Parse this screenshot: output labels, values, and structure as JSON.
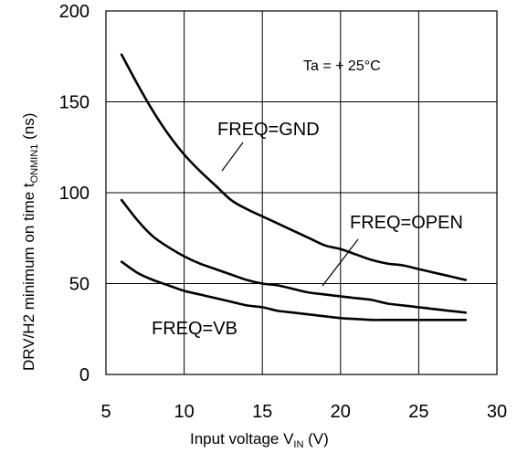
{
  "chart_data": {
    "type": "line",
    "title": "",
    "xlabel": {
      "main": "Input voltage V",
      "sub": "IN",
      "unit": " (V)"
    },
    "ylabel": {
      "main": "DRV/H2 minimum on time t",
      "sub": "ONMIN1",
      "unit": " (ns)"
    },
    "xlim": [
      5,
      30
    ],
    "ylim": [
      0,
      200
    ],
    "xticks": [
      5,
      10,
      15,
      20,
      25,
      30
    ],
    "yticks": [
      0,
      50,
      100,
      150,
      200
    ],
    "grid": true,
    "condition": "Ta = + 25°C",
    "series": [
      {
        "name": "FREQ=GND",
        "x": [
          6,
          7,
          8,
          9,
          10,
          11,
          12,
          13,
          14,
          15,
          16,
          17,
          18,
          19,
          20,
          21,
          22,
          23,
          24,
          25,
          26,
          27,
          28
        ],
        "y": [
          176,
          160,
          145,
          132,
          121,
          112,
          104,
          96,
          91,
          87,
          83,
          79,
          75,
          71,
          69,
          66,
          63,
          61,
          60,
          58,
          56,
          54,
          52
        ]
      },
      {
        "name": "FREQ=OPEN",
        "x": [
          6,
          7,
          8,
          9,
          10,
          11,
          12,
          13,
          14,
          15,
          16,
          17,
          18,
          19,
          20,
          21,
          22,
          23,
          24,
          25,
          26,
          27,
          28
        ],
        "y": [
          96,
          85,
          76,
          70,
          65,
          61,
          58,
          55,
          52,
          50,
          49,
          47,
          45,
          44,
          43,
          42,
          41,
          39,
          38,
          37,
          36,
          35,
          34
        ]
      },
      {
        "name": "FREQ=VB",
        "x": [
          6,
          7,
          8,
          9,
          10,
          11,
          12,
          13,
          14,
          15,
          16,
          17,
          18,
          19,
          20,
          21,
          22,
          23,
          24,
          25,
          26,
          27,
          28
        ],
        "y": [
          62,
          56,
          52,
          49,
          46,
          44,
          42,
          40,
          38,
          37,
          35,
          34,
          33,
          32,
          31,
          30.5,
          30,
          30,
          30,
          30,
          30,
          30,
          30
        ]
      }
    ],
    "colors": {
      "line": "#000000",
      "grid": "#000000",
      "background": "#ffffff"
    }
  }
}
